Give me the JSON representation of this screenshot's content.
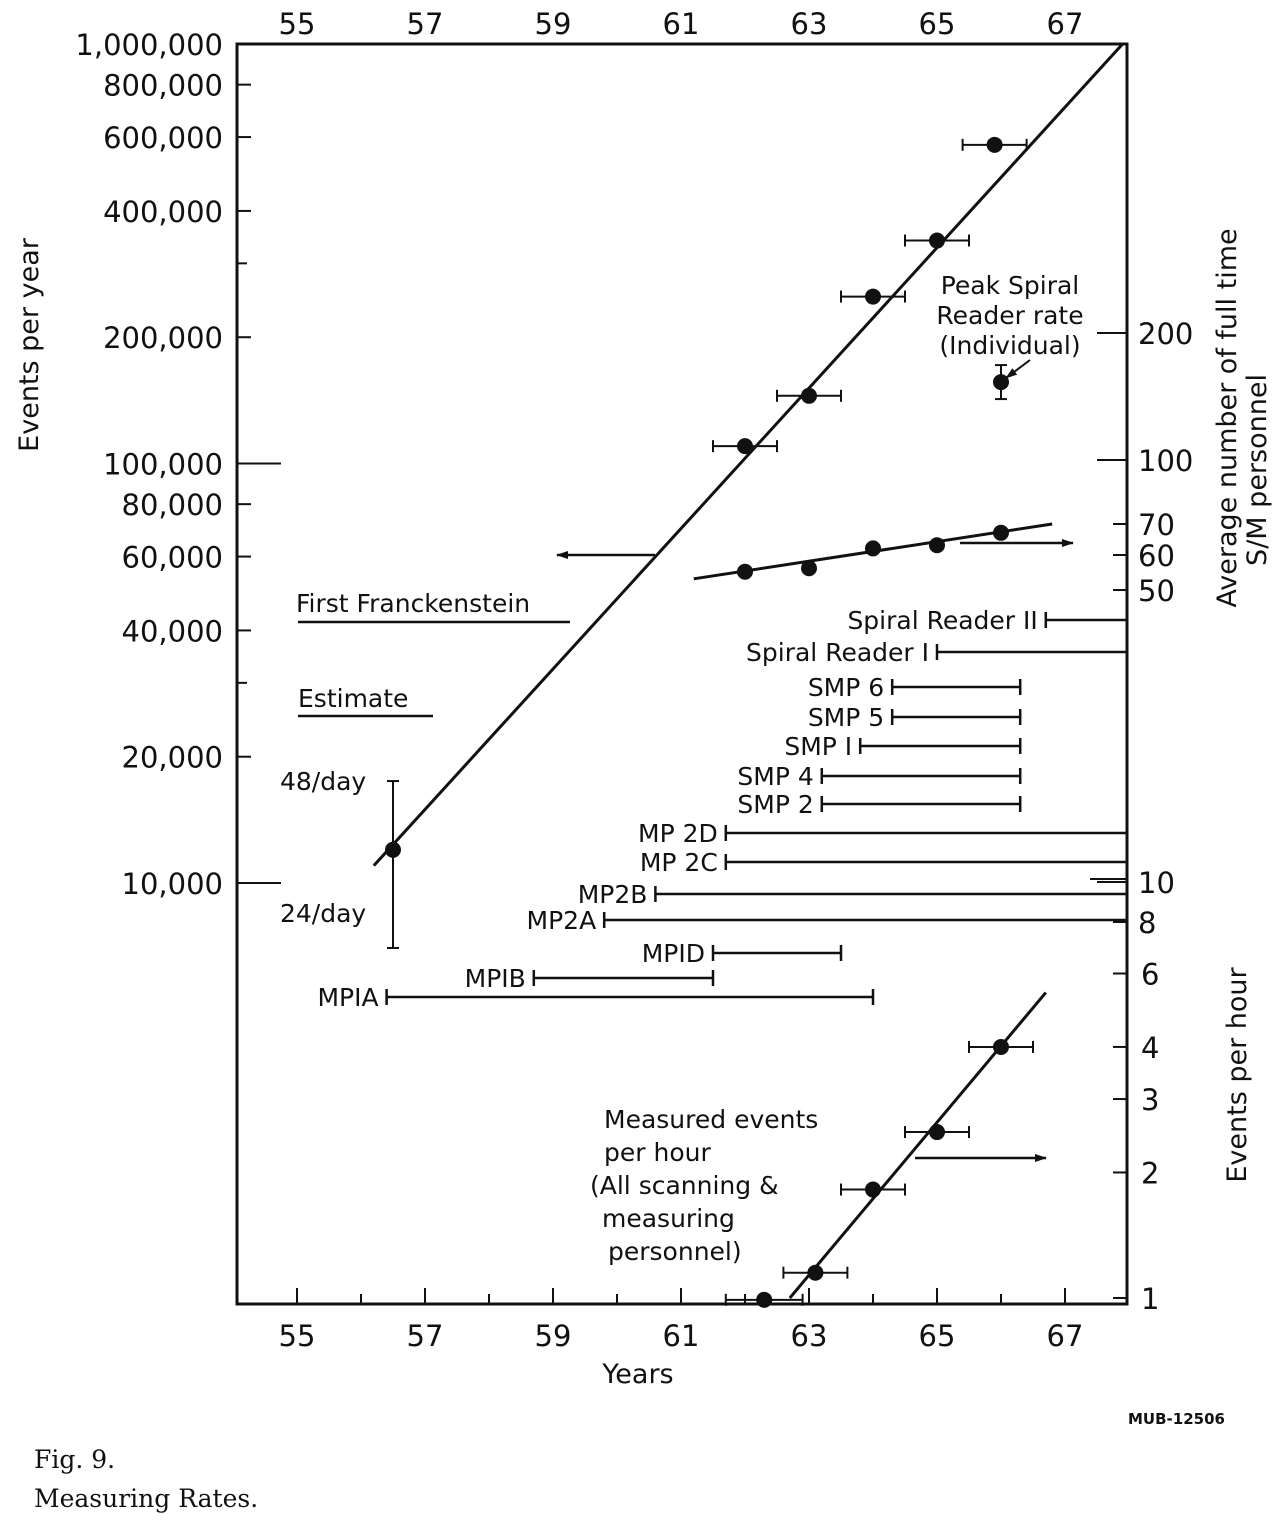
{
  "chart_data": {
    "type": "scatter",
    "x_axis": {
      "label": "Years",
      "range": [
        1954,
        1968
      ],
      "ticks": [
        55,
        57,
        59,
        61,
        63,
        65,
        67
      ],
      "tick_labels": [
        "55",
        "57",
        "59",
        "61",
        "63",
        "65",
        "67"
      ],
      "top_tick_labels": [
        "55",
        "57",
        "59",
        "61",
        "63",
        "65",
        "67"
      ]
    },
    "y_left": {
      "label": "Events per year",
      "scale": "log",
      "range": [
        2400,
        1000000
      ],
      "ticks": [
        {
          "value": 1000000,
          "label": "1,000,000"
        },
        {
          "value": 800000,
          "label": "800,000"
        },
        {
          "value": 600000,
          "label": "600,000"
        },
        {
          "value": 400000,
          "label": "400,000"
        },
        {
          "value": 200000,
          "label": "200,000"
        },
        {
          "value": 100000,
          "label": "100,000"
        },
        {
          "value": 80000,
          "label": "80,000"
        },
        {
          "value": 60000,
          "label": "60,000"
        },
        {
          "value": 40000,
          "label": "40,000"
        },
        {
          "value": 20000,
          "label": "20,000"
        },
        {
          "value": 10000,
          "label": "10,000"
        }
      ]
    },
    "y_right_personnel": {
      "label_line1": "Average number of full time",
      "label_line2": "S/M personnel",
      "ticks": [
        {
          "value": 200,
          "label": "200"
        },
        {
          "value": 100,
          "label": "100"
        },
        {
          "value": 70,
          "label": "70"
        },
        {
          "value": 60,
          "label": "60"
        },
        {
          "value": 50,
          "label": "50"
        },
        {
          "value": 10,
          "label": "10"
        },
        {
          "value": 8,
          "label": "8"
        }
      ]
    },
    "y_right_rate": {
      "label": "Events per hour",
      "scale": "log",
      "range": [
        1,
        5.5
      ],
      "ticks": [
        {
          "value": 6,
          "label": "6"
        },
        {
          "value": 4,
          "label": "4"
        },
        {
          "value": 3,
          "label": "3"
        },
        {
          "value": 2,
          "label": "2"
        },
        {
          "value": 1,
          "label": "1"
        }
      ]
    },
    "series": [
      {
        "axis": "left",
        "points": [
          {
            "x": 1956.5,
            "y": 12000,
            "ylow": 7000,
            "yhigh": 17500
          },
          {
            "x": 1962,
            "y": 110000,
            "xerr": 0.5
          },
          {
            "x": 1963,
            "y": 145000,
            "xerr": 0.5
          },
          {
            "x": 1964,
            "y": 250000,
            "xerr": 0.5
          },
          {
            "x": 1965,
            "y": 340000,
            "xerr": 0.5
          },
          {
            "x": 1965.9,
            "y": 575000,
            "xerr": 0.5
          }
        ],
        "fit": [
          [
            1956.2,
            11000
          ],
          [
            1967.9,
            1000000
          ]
        ]
      },
      {
        "axis": "personnel",
        "points": [
          {
            "x": 1962,
            "y": 55
          },
          {
            "x": 1963,
            "y": 56
          },
          {
            "x": 1964,
            "y": 62
          },
          {
            "x": 1965,
            "y": 63
          },
          {
            "x": 1966,
            "y": 67
          }
        ],
        "fit": [
          [
            1961.2,
            53
          ],
          [
            1966.8,
            70
          ]
        ]
      },
      {
        "axis": "rate",
        "points": [
          {
            "x": 1962.3,
            "y": 0.99,
            "xerr": 0.6
          },
          {
            "x": 1963.1,
            "y": 1.15,
            "xerr": 0.5
          },
          {
            "x": 1964,
            "y": 1.82,
            "xerr": 0.5
          },
          {
            "x": 1965,
            "y": 2.5,
            "xerr": 0.5
          },
          {
            "x": 1966,
            "y": 4.0,
            "xerr": 0.5
          }
        ],
        "fit": [
          [
            1962.7,
            1.0
          ],
          [
            1966.7,
            5.4
          ]
        ]
      },
      {
        "axis": "personnel",
        "points": [
          {
            "x": 1966,
            "y": 153
          }
        ]
      }
    ],
    "equipment": [
      {
        "label": "Spiral Reader II",
        "start": 1966.7,
        "end": 1968
      },
      {
        "label": "Spiral Reader I",
        "start": 1965,
        "end": 1968
      },
      {
        "label": "SMP 6",
        "start": 1964.3,
        "end": 1966.3
      },
      {
        "label": "SMP 5",
        "start": 1964.3,
        "end": 1966.3
      },
      {
        "label": "SMP I",
        "start": 1963.8,
        "end": 1966.3
      },
      {
        "label": "SMP 4",
        "start": 1963.2,
        "end": 1966.3
      },
      {
        "label": "SMP 2",
        "start": 1963.2,
        "end": 1966.3
      },
      {
        "label": "MP 2D",
        "start": 1961.7,
        "end": 1968
      },
      {
        "label": "MP 2C",
        "start": 1961.7,
        "end": 1968
      },
      {
        "label": "MP2B",
        "start": 1960.6,
        "end": 1968
      },
      {
        "label": "MP2A",
        "start": 1959.8,
        "end": 1968
      },
      {
        "label": "MPID",
        "start": 1961.5,
        "end": 1963.5
      },
      {
        "label": "MPIB",
        "start": 1958.7,
        "end": 1961.5
      },
      {
        "label": "MPIA",
        "start": 1956.4,
        "end": 1964
      }
    ],
    "annotations": {
      "first": "First Franckenstein",
      "estimate": "Estimate",
      "per_day_high": "48/day",
      "per_day_low": "24/day",
      "peak": [
        "Peak Spiral",
        "Reader rate",
        "(Individual)"
      ],
      "measured": [
        "Measured events",
        "per hour",
        "(All scanning &",
        "measuring",
        "personnel)"
      ]
    }
  },
  "figure_ref": "MUB-12506",
  "caption": {
    "number": "Fig. 9.",
    "title": "Measuring Rates."
  }
}
